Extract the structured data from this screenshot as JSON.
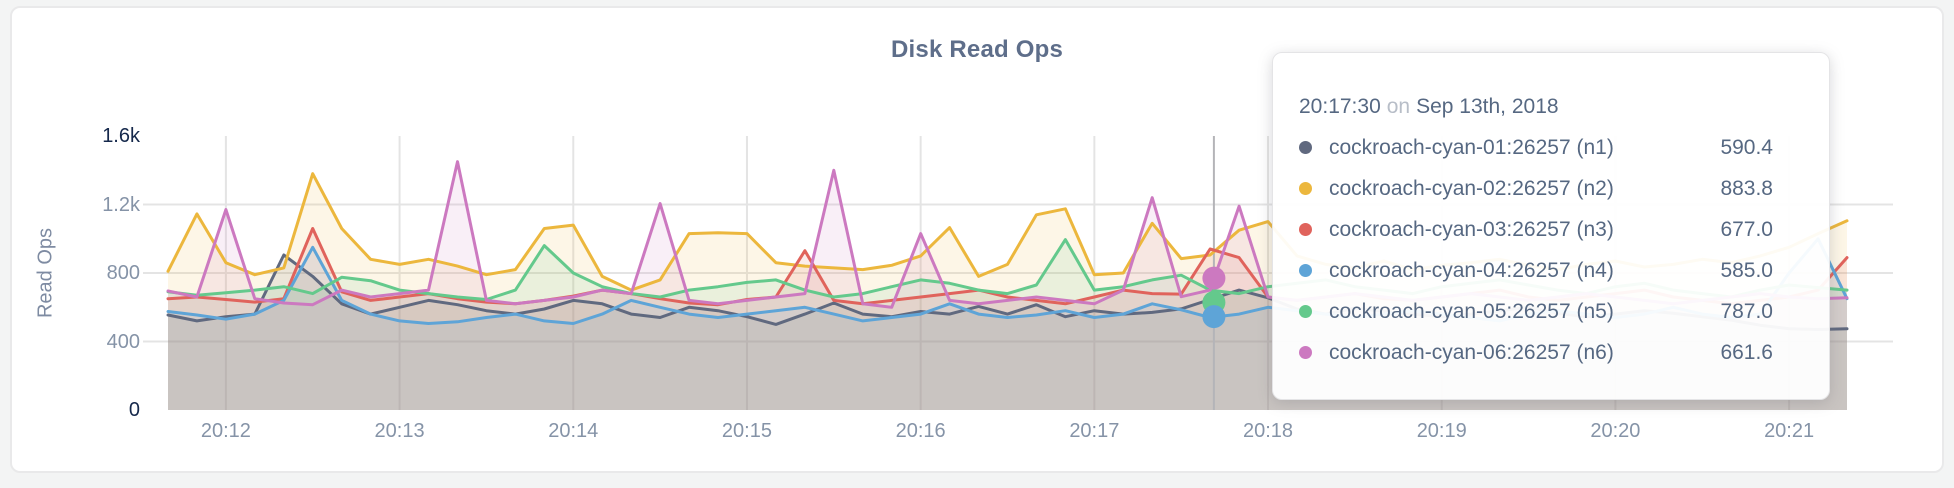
{
  "page": {
    "background": "#f3f4f4",
    "card_background": "#ffffff",
    "card_border": "#e9e9ea"
  },
  "chart_data": {
    "type": "area",
    "title": "Disk Read Ops",
    "xlabel": "",
    "ylabel": "Read Ops",
    "ylim": [
      0,
      1600
    ],
    "grid": true,
    "x_start_time": "20:11:40",
    "x_interval_seconds": 10,
    "y_ticks": [
      {
        "label": "0",
        "value": 0,
        "emphasis": true
      },
      {
        "label": "400",
        "value": 400,
        "emphasis": false
      },
      {
        "label": "800",
        "value": 800,
        "emphasis": false
      },
      {
        "label": "1.2k",
        "value": 1200,
        "emphasis": false
      },
      {
        "label": "1.6k",
        "value": 1600,
        "emphasis": true
      }
    ],
    "x_ticks": [
      {
        "label": "20:12",
        "index": 2
      },
      {
        "label": "20:13",
        "index": 8
      },
      {
        "label": "20:14",
        "index": 14
      },
      {
        "label": "20:15",
        "index": 20
      },
      {
        "label": "20:16",
        "index": 26
      },
      {
        "label": "20:17",
        "index": 32
      },
      {
        "label": "20:18",
        "index": 38
      },
      {
        "label": "20:19",
        "index": 44
      },
      {
        "label": "20:20",
        "index": 50
      },
      {
        "label": "20:21",
        "index": 56
      }
    ],
    "series": [
      {
        "id": "n1",
        "name": "cockroach-cyan-01:26257 (n1)",
        "color": "#60697f",
        "values": [
          555,
          520,
          545,
          560,
          905,
          780,
          620,
          560,
          600,
          640,
          615,
          580,
          560,
          590,
          640,
          620,
          560,
          540,
          600,
          580,
          545,
          500,
          560,
          625,
          560,
          545,
          575,
          560,
          605,
          560,
          615,
          545,
          580,
          560,
          570,
          590.4,
          645,
          700,
          655,
          590,
          560,
          595,
          575,
          560,
          545,
          560,
          580,
          600,
          565,
          545,
          560,
          580,
          565,
          545,
          525,
          495,
          475,
          470,
          475
        ]
      },
      {
        "id": "n2",
        "name": "cockroach-cyan-02:26257 (n2)",
        "color": "#ecb73d",
        "values": [
          810,
          1145,
          860,
          790,
          830,
          1380,
          1060,
          880,
          850,
          880,
          840,
          790,
          820,
          1060,
          1080,
          780,
          700,
          760,
          1030,
          1035,
          1030,
          860,
          840,
          830,
          820,
          845,
          900,
          1065,
          780,
          850,
          1140,
          1175,
          790,
          800,
          1090,
          883.8,
          905,
          1050,
          1100,
          900,
          850,
          830,
          870,
          820,
          845,
          860,
          880,
          845,
          820,
          850,
          870,
          835,
          850,
          880,
          860,
          900,
          950,
          1030,
          1105
        ]
      },
      {
        "id": "n3",
        "name": "cockroach-cyan-03:26257 (n3)",
        "color": "#e0635c",
        "values": [
          650,
          660,
          645,
          630,
          650,
          1060,
          690,
          640,
          660,
          680,
          650,
          630,
          620,
          640,
          665,
          700,
          680,
          650,
          625,
          615,
          645,
          660,
          930,
          640,
          620,
          640,
          660,
          680,
          700,
          660,
          640,
          620,
          660,
          700,
          680,
          677,
          940,
          890,
          660,
          640,
          660,
          680,
          650,
          640,
          660,
          680,
          700,
          660,
          640,
          660,
          680,
          700,
          660,
          640,
          620,
          640,
          660,
          700,
          890
        ]
      },
      {
        "id": "n4",
        "name": "cockroach-cyan-04:26257 (n4)",
        "color": "#5ea4d7",
        "values": [
          575,
          555,
          530,
          560,
          640,
          950,
          640,
          560,
          520,
          505,
          515,
          540,
          560,
          520,
          505,
          560,
          640,
          600,
          560,
          540,
          560,
          580,
          600,
          560,
          520,
          540,
          560,
          620,
          560,
          540,
          555,
          580,
          540,
          560,
          620,
          585,
          540,
          560,
          600,
          580,
          560,
          540,
          560,
          580,
          560,
          540,
          520,
          560,
          580,
          560,
          540,
          560,
          600,
          560,
          540,
          560,
          800,
          1000,
          650
        ]
      },
      {
        "id": "n5",
        "name": "cockroach-cyan-05:26257 (n5)",
        "color": "#64c98c",
        "values": [
          690,
          670,
          685,
          700,
          720,
          680,
          775,
          755,
          700,
          680,
          660,
          645,
          700,
          960,
          800,
          720,
          680,
          660,
          700,
          720,
          745,
          760,
          700,
          660,
          680,
          720,
          760,
          740,
          700,
          680,
          730,
          995,
          700,
          720,
          760,
          787,
          700,
          680,
          720,
          740,
          760,
          720,
          700,
          680,
          720,
          740,
          760,
          730,
          700,
          680,
          720,
          740,
          700,
          680,
          660,
          700,
          730,
          715,
          700
        ]
      },
      {
        "id": "n6",
        "name": "cockroach-cyan-06:26257 (n6)",
        "color": "#cc79c0",
        "values": [
          695,
          660,
          1170,
          650,
          625,
          615,
          700,
          660,
          680,
          700,
          1450,
          640,
          620,
          640,
          660,
          700,
          680,
          1205,
          640,
          620,
          640,
          660,
          680,
          1400,
          620,
          600,
          1030,
          640,
          620,
          640,
          660,
          640,
          620,
          700,
          1240,
          661.6,
          700,
          1190,
          660,
          640,
          660,
          680,
          660,
          640,
          660,
          680,
          660,
          640,
          660,
          680,
          660,
          640,
          620,
          640,
          660,
          680,
          660,
          650,
          655
        ]
      }
    ]
  },
  "tooltip": {
    "time": "20:17:30",
    "on_word": "on",
    "date": "Sep 13th, 2018",
    "cursor_index": 36.13,
    "rows": [
      {
        "label": "cockroach-cyan-01:26257 (n1)",
        "value": "590.4",
        "color": "#60697f"
      },
      {
        "label": "cockroach-cyan-02:26257 (n2)",
        "value": "883.8",
        "color": "#ecb73d"
      },
      {
        "label": "cockroach-cyan-03:26257 (n3)",
        "value": "677.0",
        "color": "#e0635c"
      },
      {
        "label": "cockroach-cyan-04:26257 (n4)",
        "value": "585.0",
        "color": "#5ea4d7"
      },
      {
        "label": "cockroach-cyan-05:26257 (n5)",
        "value": "787.0",
        "color": "#64c98c"
      },
      {
        "label": "cockroach-cyan-06:26257 (n6)",
        "value": "661.6",
        "color": "#cc79c0"
      }
    ],
    "dots": [
      {
        "series": "n6",
        "color": "#cc79c0",
        "value": 770
      },
      {
        "series": "n5",
        "color": "#64c98c",
        "value": 628
      },
      {
        "series": "n4",
        "color": "#5ea4d7",
        "value": 545
      }
    ]
  },
  "style": {
    "grid_color": "#e4e4e4",
    "crosshair_color": "#b4b4b8",
    "fill_opacity": 0.12,
    "line_width": 3
  }
}
